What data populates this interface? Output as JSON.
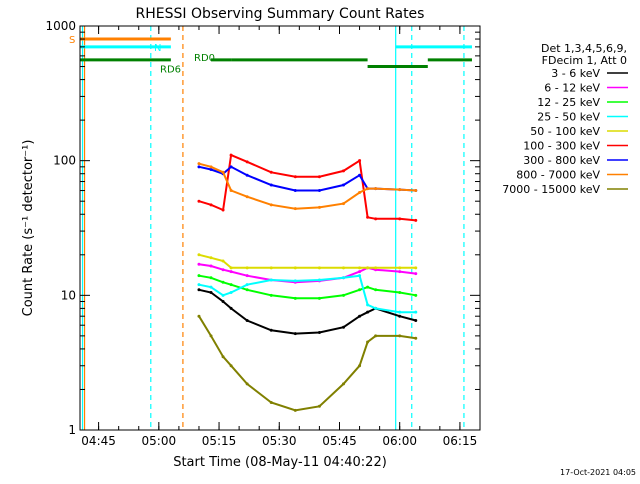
{
  "chart_data": {
    "type": "line",
    "title": "RHESSI Observing Summary Count Rates",
    "xlabel": "Start Time (08-May-11 04:40:22)",
    "ylabel": "Count Rate (s⁻¹ detector⁻¹)",
    "ylim": [
      1,
      1000
    ],
    "yscale": "log",
    "xlim": [
      "04:40:22",
      "06:20:00"
    ],
    "x_tick_labels": [
      "04:45",
      "05:00",
      "05:15",
      "05:30",
      "05:45",
      "06:00",
      "06:15"
    ],
    "y_tick_labels": [
      "1",
      "10",
      "100",
      "1000"
    ],
    "footer_date": "17-Oct-2021 04:05",
    "legend": {
      "header": [
        "Det 1,3,4,5,6,9,",
        "FDecim 1, Att 0"
      ],
      "placement": "right"
    },
    "series": [
      {
        "name": "3 - 6 keV",
        "color": "#000000",
        "x": [
          "05:10",
          "05:13",
          "05:16",
          "05:18",
          "05:22",
          "05:28",
          "05:34",
          "05:40",
          "05:46",
          "05:50",
          "05:52",
          "05:54",
          "06:00",
          "06:04"
        ],
        "y": [
          11,
          10.5,
          9,
          8,
          6.5,
          5.5,
          5.2,
          5.3,
          5.8,
          7,
          7.5,
          8,
          7,
          6.5
        ]
      },
      {
        "name": "6 - 12 keV",
        "color": "#ff00ff",
        "x": [
          "05:10",
          "05:13",
          "05:16",
          "05:18",
          "05:22",
          "05:28",
          "05:34",
          "05:40",
          "05:46",
          "05:50",
          "05:52",
          "05:54",
          "06:00",
          "06:04"
        ],
        "y": [
          17,
          16.5,
          15.5,
          15,
          14,
          13,
          12.5,
          12.8,
          13.5,
          15,
          16,
          15.5,
          15,
          14.5
        ]
      },
      {
        "name": "12 - 25 keV",
        "color": "#00ff00",
        "x": [
          "05:10",
          "05:13",
          "05:16",
          "05:18",
          "05:22",
          "05:28",
          "05:34",
          "05:40",
          "05:46",
          "05:50",
          "05:52",
          "05:54",
          "06:00",
          "06:04"
        ],
        "y": [
          14,
          13.5,
          12.5,
          12,
          11,
          10,
          9.5,
          9.5,
          10,
          11,
          11.5,
          11,
          10.5,
          10
        ]
      },
      {
        "name": "25 - 50 keV",
        "color": "#00ffff",
        "x": [
          "05:10",
          "05:13",
          "05:16",
          "05:18",
          "05:22",
          "05:28",
          "05:34",
          "05:40",
          "05:46",
          "05:50",
          "05:52",
          "05:54",
          "06:00",
          "06:04"
        ],
        "y": [
          12,
          11.5,
          10,
          10.5,
          12,
          13,
          12.8,
          13,
          13.5,
          14,
          8.5,
          8,
          7.5,
          7.5
        ]
      },
      {
        "name": "50 - 100 keV",
        "color": "#dcdc00",
        "x": [
          "05:10",
          "05:13",
          "05:16",
          "05:18",
          "05:22",
          "05:28",
          "05:34",
          "05:40",
          "05:46",
          "05:50",
          "05:52",
          "05:54",
          "06:00",
          "06:04"
        ],
        "y": [
          20,
          19,
          18,
          16,
          16,
          16,
          16,
          16,
          16,
          16,
          16,
          16,
          16,
          16
        ]
      },
      {
        "name": "100 - 300 keV",
        "color": "#ff0000",
        "x": [
          "05:10",
          "05:13",
          "05:16",
          "05:18",
          "05:22",
          "05:28",
          "05:34",
          "05:40",
          "05:46",
          "05:50",
          "05:52",
          "05:54",
          "06:00",
          "06:04"
        ],
        "y": [
          50,
          47,
          43,
          110,
          98,
          82,
          76,
          76,
          84,
          100,
          38,
          37,
          37,
          36
        ]
      },
      {
        "name": "300 - 800 keV",
        "color": "#0000ff",
        "x": [
          "05:10",
          "05:13",
          "05:16",
          "05:18",
          "05:22",
          "05:28",
          "05:34",
          "05:40",
          "05:46",
          "05:50",
          "05:52",
          "05:54",
          "06:00",
          "06:04"
        ],
        "y": [
          90,
          86,
          80,
          90,
          78,
          66,
          60,
          60,
          66,
          78,
          62,
          62,
          61,
          60
        ]
      },
      {
        "name": "800 - 7000 keV",
        "color": "#ff8000",
        "x": [
          "05:10",
          "05:13",
          "05:16",
          "05:18",
          "05:22",
          "05:28",
          "05:34",
          "05:40",
          "05:46",
          "05:50",
          "05:52",
          "05:54",
          "06:00",
          "06:04"
        ],
        "y": [
          95,
          90,
          82,
          60,
          54,
          47,
          44,
          45,
          48,
          58,
          62,
          62,
          61,
          60
        ]
      },
      {
        "name": "7000 - 15000 keV",
        "color": "#808000",
        "x": [
          "05:10",
          "05:13",
          "05:16",
          "05:18",
          "05:22",
          "05:28",
          "05:34",
          "05:40",
          "05:46",
          "05:50",
          "05:52",
          "05:54",
          "06:00",
          "06:04"
        ],
        "y": [
          7,
          5,
          3.5,
          3,
          2.2,
          1.6,
          1.4,
          1.5,
          2.2,
          3,
          4.5,
          5,
          5,
          4.8
        ]
      }
    ],
    "annotations": {
      "S": {
        "label": "S",
        "color": "#ff8000",
        "segments": [
          [
            "04:40:22",
            "05:03"
          ]
        ],
        "level": 800
      },
      "N": {
        "label": "N",
        "color": "#00ffff",
        "segments": [
          [
            "04:40:22",
            "05:03"
          ],
          [
            "05:59",
            "06:18"
          ]
        ],
        "level": 700
      },
      "RD0": {
        "label": "RD0",
        "color": "#008000",
        "segments": [
          [
            "04:40:22",
            "05:03"
          ],
          [
            "05:13",
            "05:18"
          ],
          [
            "05:18",
            "05:52"
          ],
          [
            "05:52",
            "06:07"
          ],
          [
            "06:07",
            "06:18"
          ]
        ],
        "levels": [
          560,
          560,
          560,
          500,
          560
        ]
      },
      "RD6": {
        "label": "RD6",
        "color": "#008000",
        "level": 500
      }
    },
    "vlines": [
      {
        "time": "04:41",
        "color": "#00ffff",
        "dash": false
      },
      {
        "time": "04:41.5",
        "color": "#ff8000",
        "dash": false
      },
      {
        "time": "04:58",
        "color": "#00ffff",
        "dash": true
      },
      {
        "time": "05:06",
        "color": "#ff8000",
        "dash": true
      },
      {
        "time": "05:59",
        "color": "#00ffff",
        "dash": false
      },
      {
        "time": "06:03",
        "color": "#00ffff",
        "dash": true
      },
      {
        "time": "06:16",
        "color": "#00ffff",
        "dash": true
      }
    ],
    "grid": false
  }
}
